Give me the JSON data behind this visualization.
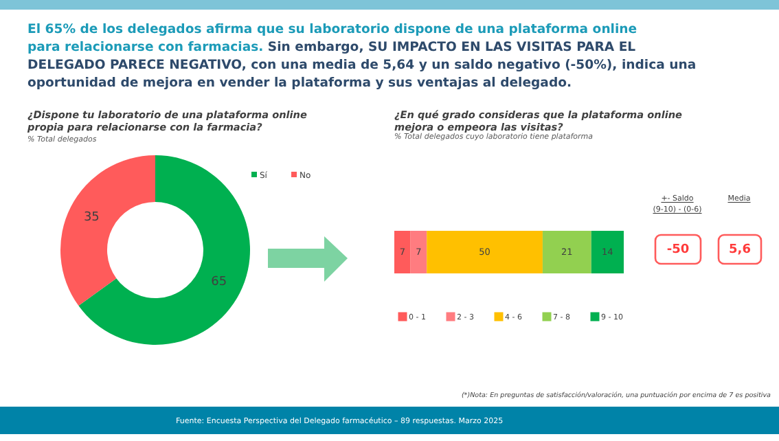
{
  "chart_data": [
    {
      "type": "donut",
      "title": "El 65% de los delegados afirma que su laboratorio dispone de una plataforma online para relacionarse con farmacias. Sin embargo, SU IMPACTO EN LAS VISITAS PARA EL DELEGADO PARECE NEGATIVO, con una media de 5,64 y un saldo negativo (-50%), indica una oportunidad de mejora en vender la plataforma y sus ventajas al delegado.",
      "subtitle": "¿Dispone tu laboratorio de una plataforma online propia para relacionarse con la farmacia?",
      "annotations": [
        "% Total delegados"
      ],
      "categories": [
        "Sí",
        "No"
      ],
      "values": [
        65,
        35
      ],
      "colors": [
        "#00b050",
        "#ff5b5b"
      ],
      "data_labels": true,
      "legend": "top right"
    },
    {
      "type": "bar",
      "orientation": "horizontal",
      "stacked": true,
      "title": "¿En qué grado consideras que la plataforma online mejora o empeora las visitas?",
      "subtitle": "% Total delegados cuyo laboratorio tiene plataforma",
      "categories": [
        null
      ],
      "series": [
        {
          "name": "0 - 1",
          "color": "#ff5b5b",
          "values": [
            7
          ]
        },
        {
          "name": "2 - 3",
          "color": "#ff7c80",
          "values": [
            7
          ]
        },
        {
          "name": "4 - 6",
          "color": "#ffc000",
          "values": [
            50
          ]
        },
        {
          "name": "7 - 8",
          "color": "#92d050",
          "values": [
            21
          ]
        },
        {
          "name": "9 - 10",
          "color": "#00b050",
          "values": [
            14
          ]
        }
      ],
      "data_labels": true,
      "legend": "bottom",
      "annotations": [
        "+- Saldo",
        "(9-10) - (0-6)",
        "-50",
        "Media",
        "5,6",
        "(*)Nota: En preguntas de satisfacción/valoración, una puntuación por encima de 7 es positiva",
        "Fuente: Encuesta Perspectiva del Delegado farmacéutico – 89 respuestas. Marzo 2025"
      ]
    }
  ]
}
